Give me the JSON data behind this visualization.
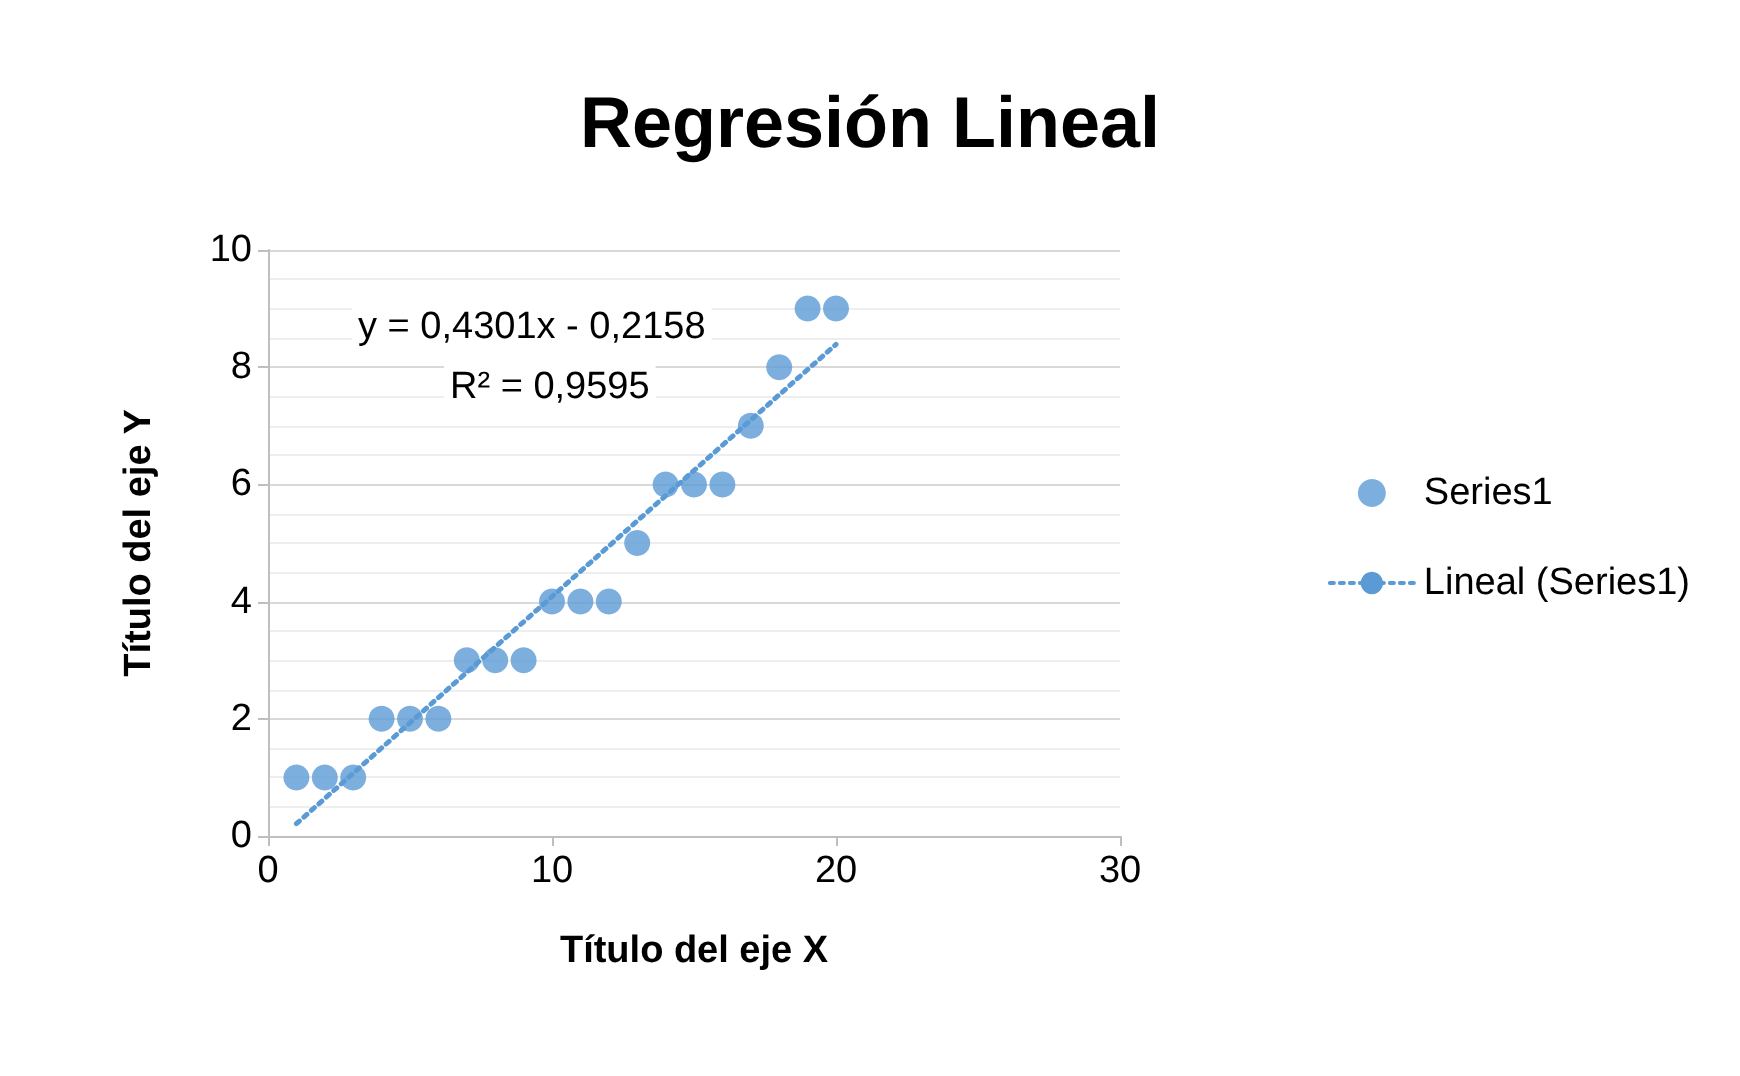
{
  "chart_data": {
    "type": "scatter",
    "title": "Regresión Lineal",
    "xlabel": "Título del eje X",
    "ylabel": "Título del eje Y",
    "xlim": [
      0,
      30
    ],
    "xticks": [
      0,
      10,
      20,
      30
    ],
    "ylim": [
      0,
      10
    ],
    "yticks": [
      0,
      2,
      4,
      6,
      8,
      10
    ],
    "grid": "y",
    "legend": "right",
    "marker": "circle",
    "annotations": [
      "y = 0,4301x - 0,2158",
      "R² = 0,9595"
    ],
    "series": [
      {
        "name": "Series1",
        "color": "#5b9bd5",
        "x": [
          1,
          2,
          3,
          4,
          5,
          6,
          7,
          8,
          9,
          10,
          11,
          12,
          13,
          14,
          15,
          16,
          17,
          18,
          19,
          20
        ],
        "values": [
          1,
          1,
          1,
          2,
          2,
          2,
          3,
          3,
          3,
          4,
          4,
          4,
          5,
          6,
          6,
          6,
          7,
          8,
          9,
          9
        ]
      },
      {
        "name": "Lineal (Series1)",
        "type": "line",
        "line_style": "dotted",
        "marker": "none",
        "color": "#5b9bd5",
        "x": [
          1,
          20
        ],
        "values": [
          0.21,
          8.39
        ]
      }
    ]
  }
}
